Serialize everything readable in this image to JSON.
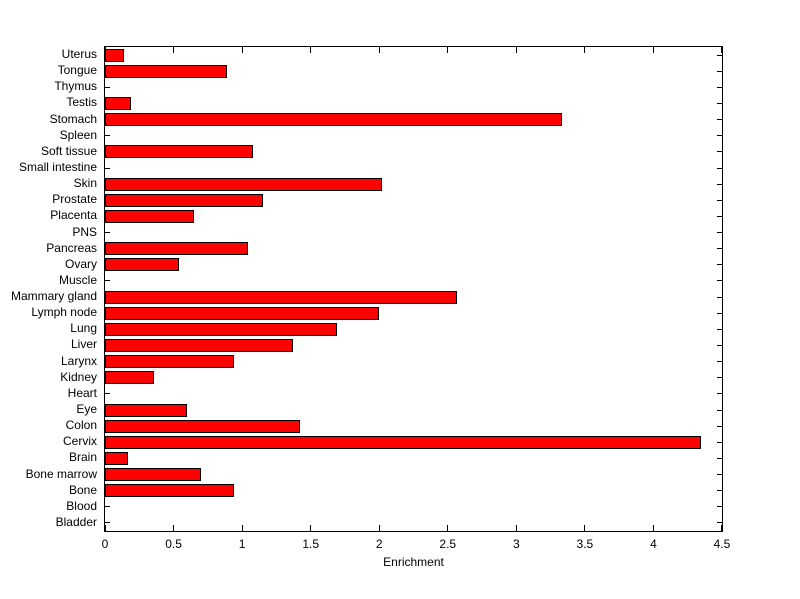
{
  "chart_data": {
    "type": "bar",
    "orientation": "horizontal",
    "xlabel": "Enrichment",
    "xlim": [
      0,
      4.5
    ],
    "xticks": [
      0,
      0.5,
      1,
      1.5,
      2,
      2.5,
      3,
      3.5,
      4,
      4.5
    ],
    "xtick_labels": [
      "0",
      "0.5",
      "1",
      "1.5",
      "2",
      "2.5",
      "3",
      "3.5",
      "4",
      "4.5"
    ],
    "categories": [
      "Uterus",
      "Tongue",
      "Thymus",
      "Testis",
      "Stomach",
      "Spleen",
      "Soft tissue",
      "Small intestine",
      "Skin",
      "Prostate",
      "Placenta",
      "PNS",
      "Pancreas",
      "Ovary",
      "Muscle",
      "Mammary gland",
      "Lymph node",
      "Lung",
      "Liver",
      "Larynx",
      "Kidney",
      "Heart",
      "Eye",
      "Colon",
      "Cervix",
      "Brain",
      "Bone marrow",
      "Bone",
      "Blood",
      "Bladder"
    ],
    "values": [
      0.14,
      0.89,
      0,
      0.19,
      3.33,
      0,
      1.08,
      0,
      2.02,
      1.15,
      0.65,
      0,
      1.04,
      0.54,
      0,
      2.57,
      2.0,
      1.69,
      1.37,
      0.94,
      0.36,
      0,
      0.6,
      1.42,
      4.35,
      0.17,
      0.7,
      0.94,
      0,
      0
    ],
    "bar_color": "#ff0000",
    "bar_border_color": "#000000",
    "axis_color": "#000000",
    "grid": false,
    "tick_direction": "in"
  }
}
